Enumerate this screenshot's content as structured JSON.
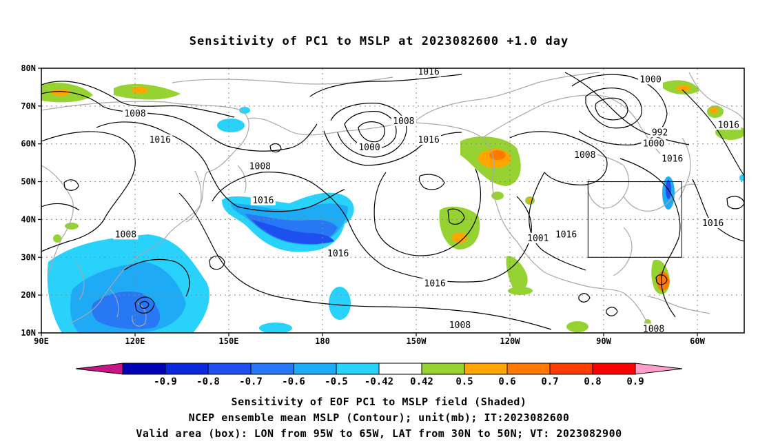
{
  "title": "Sensitivity of PC1 to MSLP at 2023082600 +1.0 day",
  "axes": {
    "lat_labels": [
      "10N",
      "20N",
      "30N",
      "40N",
      "50N",
      "60N",
      "70N",
      "80N"
    ],
    "lat_values": [
      10,
      20,
      30,
      40,
      50,
      60,
      70,
      80
    ],
    "lon_labels": [
      "90E",
      "120E",
      "150E",
      "180",
      "150W",
      "120W",
      "90W",
      "60W"
    ],
    "lon_values": [
      90,
      120,
      150,
      180,
      210,
      240,
      270,
      300
    ],
    "lon_range": [
      90,
      315
    ],
    "lat_range": [
      10,
      80
    ],
    "grid": "dotted"
  },
  "contours": {
    "variable": "MSLP",
    "labels": [
      {
        "text": "1016",
        "lon": 214,
        "lat": 79
      },
      {
        "text": "1008",
        "lon": 120,
        "lat": 68
      },
      {
        "text": "1008",
        "lon": 206,
        "lat": 66
      },
      {
        "text": "1016",
        "lon": 128,
        "lat": 61
      },
      {
        "text": "1000",
        "lon": 195,
        "lat": 59
      },
      {
        "text": "1016",
        "lon": 214,
        "lat": 61
      },
      {
        "text": "1008",
        "lon": 160,
        "lat": 54
      },
      {
        "text": "1016",
        "lon": 161,
        "lat": 45
      },
      {
        "text": "1008",
        "lon": 117,
        "lat": 36
      },
      {
        "text": "1016",
        "lon": 185,
        "lat": 31
      },
      {
        "text": "1016",
        "lon": 216,
        "lat": 23
      },
      {
        "text": "1008",
        "lon": 224,
        "lat": 12
      },
      {
        "text": "1000",
        "lon": 285,
        "lat": 77
      },
      {
        "text": "992",
        "lon": 288,
        "lat": 63
      },
      {
        "text": "1000",
        "lon": 286,
        "lat": 60
      },
      {
        "text": "1016",
        "lon": 292,
        "lat": 56
      },
      {
        "text": "1008",
        "lon": 264,
        "lat": 57
      },
      {
        "text": "1016",
        "lon": 310,
        "lat": 65
      },
      {
        "text": "1016",
        "lon": 305,
        "lat": 39
      },
      {
        "text": "1001",
        "lon": 249,
        "lat": 35
      },
      {
        "text": "1016",
        "lon": 258,
        "lat": 36
      },
      {
        "text": "1008",
        "lon": 286,
        "lat": 11
      }
    ]
  },
  "colorbar": {
    "labels": [
      "-0.9",
      "-0.8",
      "-0.7",
      "-0.6",
      "-0.5",
      "-0.42",
      "0.42",
      "0.5",
      "0.6",
      "0.7",
      "0.8",
      "0.9"
    ],
    "colors": [
      "#c71585",
      "#0000b4",
      "#0a28dc",
      "#1e50f0",
      "#2878f5",
      "#1eaaf5",
      "#28d2fa",
      "#ffffff",
      "#96d232",
      "#ffa500",
      "#ff7800",
      "#ff3c00",
      "#ff0000",
      "#ff9fc8"
    ]
  },
  "valid_box": {
    "lon_min": 265,
    "lon_max": 295,
    "lat_min": 30,
    "lat_max": 50
  },
  "caption": {
    "line1": "Sensitivity of EOF PC1 to MSLP field (Shaded)",
    "line2": "NCEP ensemble mean MSLP (Contour); unit(mb); IT:2023082600",
    "line3": "Valid area (box): LON from 95W to 65W, LAT from 30N to 50N; VT: 2023082900"
  }
}
